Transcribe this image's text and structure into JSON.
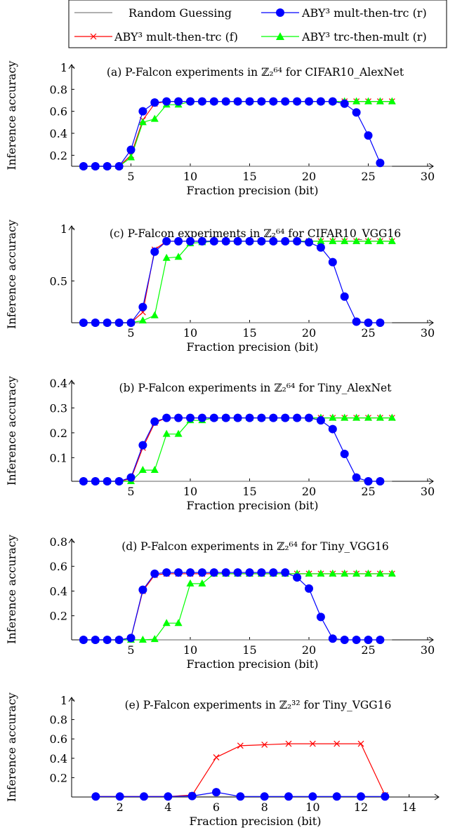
{
  "legend": {
    "entries": [
      {
        "label": "Random Guessing",
        "color": "#808080",
        "marker": "none"
      },
      {
        "label": "ABY³ mult-then-trc (r)",
        "color": "#0000ff",
        "marker": "circle"
      },
      {
        "label": "ABY³ mult-then-trc (f)",
        "color": "#ff0000",
        "marker": "x"
      },
      {
        "label": "ABY³ trc-then-mult (r)",
        "color": "#00ff00",
        "marker": "triangle"
      }
    ]
  },
  "chart_data": [
    {
      "type": "line",
      "title": "(a) P-Falcon experiments in ℤ₂⁶⁴ for CIFAR10_AlexNet",
      "xlabel": "Fraction precision (bit)",
      "ylabel": "Inference accuracy",
      "xlim": [
        0,
        30
      ],
      "ylim": [
        0.1,
        1
      ],
      "xticks": [
        5,
        10,
        15,
        20,
        25,
        30
      ],
      "yticks": [
        0.2,
        0.4,
        0.6,
        0.8,
        1
      ],
      "random_guess": 0.1,
      "series": [
        {
          "name": "ABY³ mult-then-trc (f)",
          "x": [
            1,
            2,
            3,
            4,
            5,
            6,
            7,
            8,
            9,
            10,
            11,
            12,
            13,
            14,
            15,
            16,
            17,
            18,
            19,
            20,
            21,
            22,
            23,
            24,
            25,
            26,
            27
          ],
          "values": [
            0.1,
            0.1,
            0.1,
            0.1,
            0.2,
            0.52,
            0.67,
            0.69,
            0.69,
            0.69,
            0.69,
            0.69,
            0.69,
            0.69,
            0.69,
            0.69,
            0.69,
            0.69,
            0.69,
            0.69,
            0.69,
            0.69,
            0.69,
            0.69,
            0.69,
            0.69,
            0.69
          ]
        },
        {
          "name": "ABY³ trc-then-mult (r)",
          "x": [
            1,
            2,
            3,
            4,
            5,
            6,
            7,
            8,
            9,
            10,
            11,
            12,
            13,
            14,
            15,
            16,
            17,
            18,
            19,
            20,
            21,
            22,
            23,
            24,
            25,
            26,
            27
          ],
          "values": [
            0.1,
            0.1,
            0.1,
            0.1,
            0.18,
            0.5,
            0.53,
            0.66,
            0.66,
            0.69,
            0.69,
            0.69,
            0.69,
            0.69,
            0.69,
            0.69,
            0.69,
            0.69,
            0.69,
            0.69,
            0.69,
            0.69,
            0.69,
            0.69,
            0.69,
            0.69,
            0.69
          ]
        },
        {
          "name": "ABY³ mult-then-trc (r)",
          "x": [
            1,
            2,
            3,
            4,
            5,
            6,
            7,
            8,
            9,
            10,
            11,
            12,
            13,
            14,
            15,
            16,
            17,
            18,
            19,
            20,
            21,
            22,
            23,
            24,
            25,
            26
          ],
          "values": [
            0.1,
            0.1,
            0.1,
            0.1,
            0.25,
            0.6,
            0.68,
            0.69,
            0.69,
            0.69,
            0.69,
            0.69,
            0.69,
            0.69,
            0.69,
            0.69,
            0.69,
            0.69,
            0.69,
            0.69,
            0.69,
            0.69,
            0.67,
            0.59,
            0.38,
            0.13
          ]
        }
      ]
    },
    {
      "type": "line",
      "title": "(c) P-Falcon experiments in ℤ₂⁶⁴ for CIFAR10_VGG16",
      "xlabel": "Fraction precision (bit)",
      "ylabel": "Inference accuracy",
      "xlim": [
        0,
        30
      ],
      "ylim": [
        0.1,
        1
      ],
      "xticks": [
        5,
        10,
        15,
        20,
        25,
        30
      ],
      "yticks": [
        0.5,
        1
      ],
      "random_guess": 0.1,
      "series": [
        {
          "name": "ABY³ mult-then-trc (f)",
          "x": [
            1,
            2,
            3,
            4,
            5,
            6,
            7,
            8,
            9,
            10,
            11,
            12,
            13,
            14,
            15,
            16,
            17,
            18,
            19,
            20,
            21,
            22,
            23,
            24,
            25,
            26,
            27
          ],
          "values": [
            0.1,
            0.1,
            0.1,
            0.1,
            0.1,
            0.2,
            0.8,
            0.88,
            0.88,
            0.88,
            0.88,
            0.88,
            0.88,
            0.88,
            0.88,
            0.88,
            0.88,
            0.88,
            0.88,
            0.88,
            0.88,
            0.88,
            0.88,
            0.88,
            0.88,
            0.88,
            0.88
          ]
        },
        {
          "name": "ABY³ trc-then-mult (r)",
          "x": [
            1,
            2,
            3,
            4,
            5,
            6,
            7,
            8,
            9,
            10,
            11,
            12,
            13,
            14,
            15,
            16,
            17,
            18,
            19,
            20,
            21,
            22,
            23,
            24,
            25,
            26,
            27
          ],
          "values": [
            0.1,
            0.1,
            0.1,
            0.1,
            0.1,
            0.12,
            0.17,
            0.72,
            0.73,
            0.86,
            0.87,
            0.88,
            0.88,
            0.88,
            0.88,
            0.88,
            0.88,
            0.88,
            0.88,
            0.88,
            0.88,
            0.88,
            0.88,
            0.88,
            0.88,
            0.88,
            0.88
          ]
        },
        {
          "name": "ABY³ mult-then-trc (r)",
          "x": [
            1,
            2,
            3,
            4,
            5,
            6,
            7,
            8,
            9,
            10,
            11,
            12,
            13,
            14,
            15,
            16,
            17,
            18,
            19,
            20,
            21,
            22,
            23,
            24,
            25,
            26
          ],
          "values": [
            0.1,
            0.1,
            0.1,
            0.1,
            0.1,
            0.25,
            0.78,
            0.88,
            0.88,
            0.88,
            0.88,
            0.88,
            0.88,
            0.88,
            0.88,
            0.88,
            0.88,
            0.88,
            0.88,
            0.87,
            0.82,
            0.68,
            0.35,
            0.11,
            0.1,
            0.1
          ]
        }
      ]
    },
    {
      "type": "line",
      "title": "(b) P-Falcon experiments in ℤ₂⁶⁴ for Tiny_AlexNet",
      "xlabel": "Fraction precision (bit)",
      "ylabel": "Inference accuracy",
      "xlim": [
        0,
        30
      ],
      "ylim": [
        0.005,
        0.4
      ],
      "xticks": [
        5,
        10,
        15,
        20,
        25,
        30
      ],
      "yticks": [
        0.1,
        0.2,
        0.3,
        0.4
      ],
      "random_guess": 0.005,
      "series": [
        {
          "name": "ABY³ mult-then-trc (f)",
          "x": [
            1,
            2,
            3,
            4,
            5,
            6,
            7,
            8,
            9,
            10,
            11,
            12,
            13,
            14,
            15,
            16,
            17,
            18,
            19,
            20,
            21,
            22,
            23,
            24,
            25,
            26,
            27
          ],
          "values": [
            0.005,
            0.005,
            0.005,
            0.005,
            0.015,
            0.14,
            0.24,
            0.26,
            0.26,
            0.26,
            0.26,
            0.26,
            0.26,
            0.26,
            0.26,
            0.26,
            0.26,
            0.26,
            0.26,
            0.26,
            0.26,
            0.26,
            0.26,
            0.26,
            0.26,
            0.26,
            0.26
          ]
        },
        {
          "name": "ABY³ trc-then-mult (r)",
          "x": [
            1,
            2,
            3,
            4,
            5,
            6,
            7,
            8,
            9,
            10,
            11,
            12,
            13,
            14,
            15,
            16,
            17,
            18,
            19,
            20,
            21,
            22,
            23,
            24,
            25,
            26,
            27
          ],
          "values": [
            0.005,
            0.005,
            0.005,
            0.005,
            0.005,
            0.05,
            0.05,
            0.195,
            0.195,
            0.25,
            0.25,
            0.26,
            0.26,
            0.26,
            0.26,
            0.26,
            0.26,
            0.26,
            0.26,
            0.26,
            0.26,
            0.26,
            0.26,
            0.26,
            0.26,
            0.26,
            0.26
          ]
        },
        {
          "name": "ABY³ mult-then-trc (r)",
          "x": [
            1,
            2,
            3,
            4,
            5,
            6,
            7,
            8,
            9,
            10,
            11,
            12,
            13,
            14,
            15,
            16,
            17,
            18,
            19,
            20,
            21,
            22,
            23,
            24,
            25,
            26
          ],
          "values": [
            0.005,
            0.005,
            0.005,
            0.005,
            0.02,
            0.15,
            0.245,
            0.26,
            0.26,
            0.26,
            0.26,
            0.26,
            0.26,
            0.26,
            0.26,
            0.26,
            0.26,
            0.26,
            0.26,
            0.26,
            0.25,
            0.215,
            0.115,
            0.02,
            0.005,
            0.005
          ]
        }
      ]
    },
    {
      "type": "line",
      "title": "(d) P-Falcon experiments in ℤ₂⁶⁴ for Tiny_VGG16",
      "xlabel": "Fraction precision (bit)",
      "ylabel": "Inference accuracy",
      "xlim": [
        0,
        30
      ],
      "ylim": [
        0.005,
        0.8
      ],
      "xticks": [
        5,
        10,
        15,
        20,
        25,
        30
      ],
      "yticks": [
        0.2,
        0.4,
        0.6,
        0.8
      ],
      "random_guess": 0.005,
      "series": [
        {
          "name": "ABY³ mult-then-trc (f)",
          "x": [
            1,
            2,
            3,
            4,
            5,
            6,
            7,
            8,
            9,
            10,
            11,
            12,
            13,
            14,
            15,
            16,
            17,
            18,
            19,
            20,
            21,
            22,
            23,
            24,
            25,
            26,
            27
          ],
          "values": [
            0.005,
            0.005,
            0.005,
            0.005,
            0.02,
            0.4,
            0.53,
            0.54,
            0.54,
            0.54,
            0.54,
            0.54,
            0.54,
            0.54,
            0.54,
            0.54,
            0.54,
            0.54,
            0.54,
            0.54,
            0.54,
            0.54,
            0.54,
            0.54,
            0.54,
            0.54,
            0.54
          ]
        },
        {
          "name": "ABY³ trc-then-mult (r)",
          "x": [
            1,
            2,
            3,
            4,
            5,
            6,
            7,
            8,
            9,
            10,
            11,
            12,
            13,
            14,
            15,
            16,
            17,
            18,
            19,
            20,
            21,
            22,
            23,
            24,
            25,
            26,
            27
          ],
          "values": [
            0.005,
            0.005,
            0.005,
            0.005,
            0.005,
            0.005,
            0.01,
            0.14,
            0.14,
            0.46,
            0.46,
            0.54,
            0.54,
            0.54,
            0.54,
            0.54,
            0.54,
            0.54,
            0.54,
            0.54,
            0.54,
            0.54,
            0.54,
            0.54,
            0.54,
            0.54,
            0.54
          ]
        },
        {
          "name": "ABY³ mult-then-trc (r)",
          "x": [
            1,
            2,
            3,
            4,
            5,
            6,
            7,
            8,
            9,
            10,
            11,
            12,
            13,
            14,
            15,
            16,
            17,
            18,
            19,
            20,
            21,
            22,
            23,
            24,
            25,
            26
          ],
          "values": [
            0.005,
            0.005,
            0.005,
            0.005,
            0.02,
            0.41,
            0.54,
            0.55,
            0.55,
            0.55,
            0.55,
            0.55,
            0.55,
            0.55,
            0.55,
            0.55,
            0.55,
            0.55,
            0.51,
            0.42,
            0.19,
            0.015,
            0.005,
            0.005,
            0.005,
            0.005
          ]
        }
      ]
    },
    {
      "type": "line",
      "title": "(e) P-Falcon experiments in ℤ₂³² for Tiny_VGG16",
      "xlabel": "Fraction precision (bit)",
      "ylabel": "Inference accuracy",
      "xlim": [
        0,
        15
      ],
      "ylim": [
        0,
        1
      ],
      "xticks": [
        2,
        4,
        6,
        8,
        10,
        12,
        14
      ],
      "yticks": [
        0.2,
        0.4,
        0.6,
        0.8,
        1
      ],
      "random_guess": 0.005,
      "series": [
        {
          "name": "ABY³ mult-then-trc (f)",
          "x": [
            1,
            2,
            3,
            4,
            5,
            6,
            7,
            8,
            9,
            10,
            11,
            12,
            13
          ],
          "values": [
            0.005,
            0.005,
            0.005,
            0.005,
            0.02,
            0.41,
            0.53,
            0.54,
            0.55,
            0.55,
            0.55,
            0.55,
            0.02
          ]
        },
        {
          "name": "ABY³ mult-then-trc (r)",
          "x": [
            1,
            2,
            3,
            4,
            5,
            6,
            7,
            8,
            9,
            10,
            11,
            12,
            13
          ],
          "values": [
            0.005,
            0.005,
            0.005,
            0.005,
            0.01,
            0.05,
            0.005,
            0.005,
            0.005,
            0.005,
            0.005,
            0.005,
            0.005
          ]
        }
      ]
    }
  ]
}
